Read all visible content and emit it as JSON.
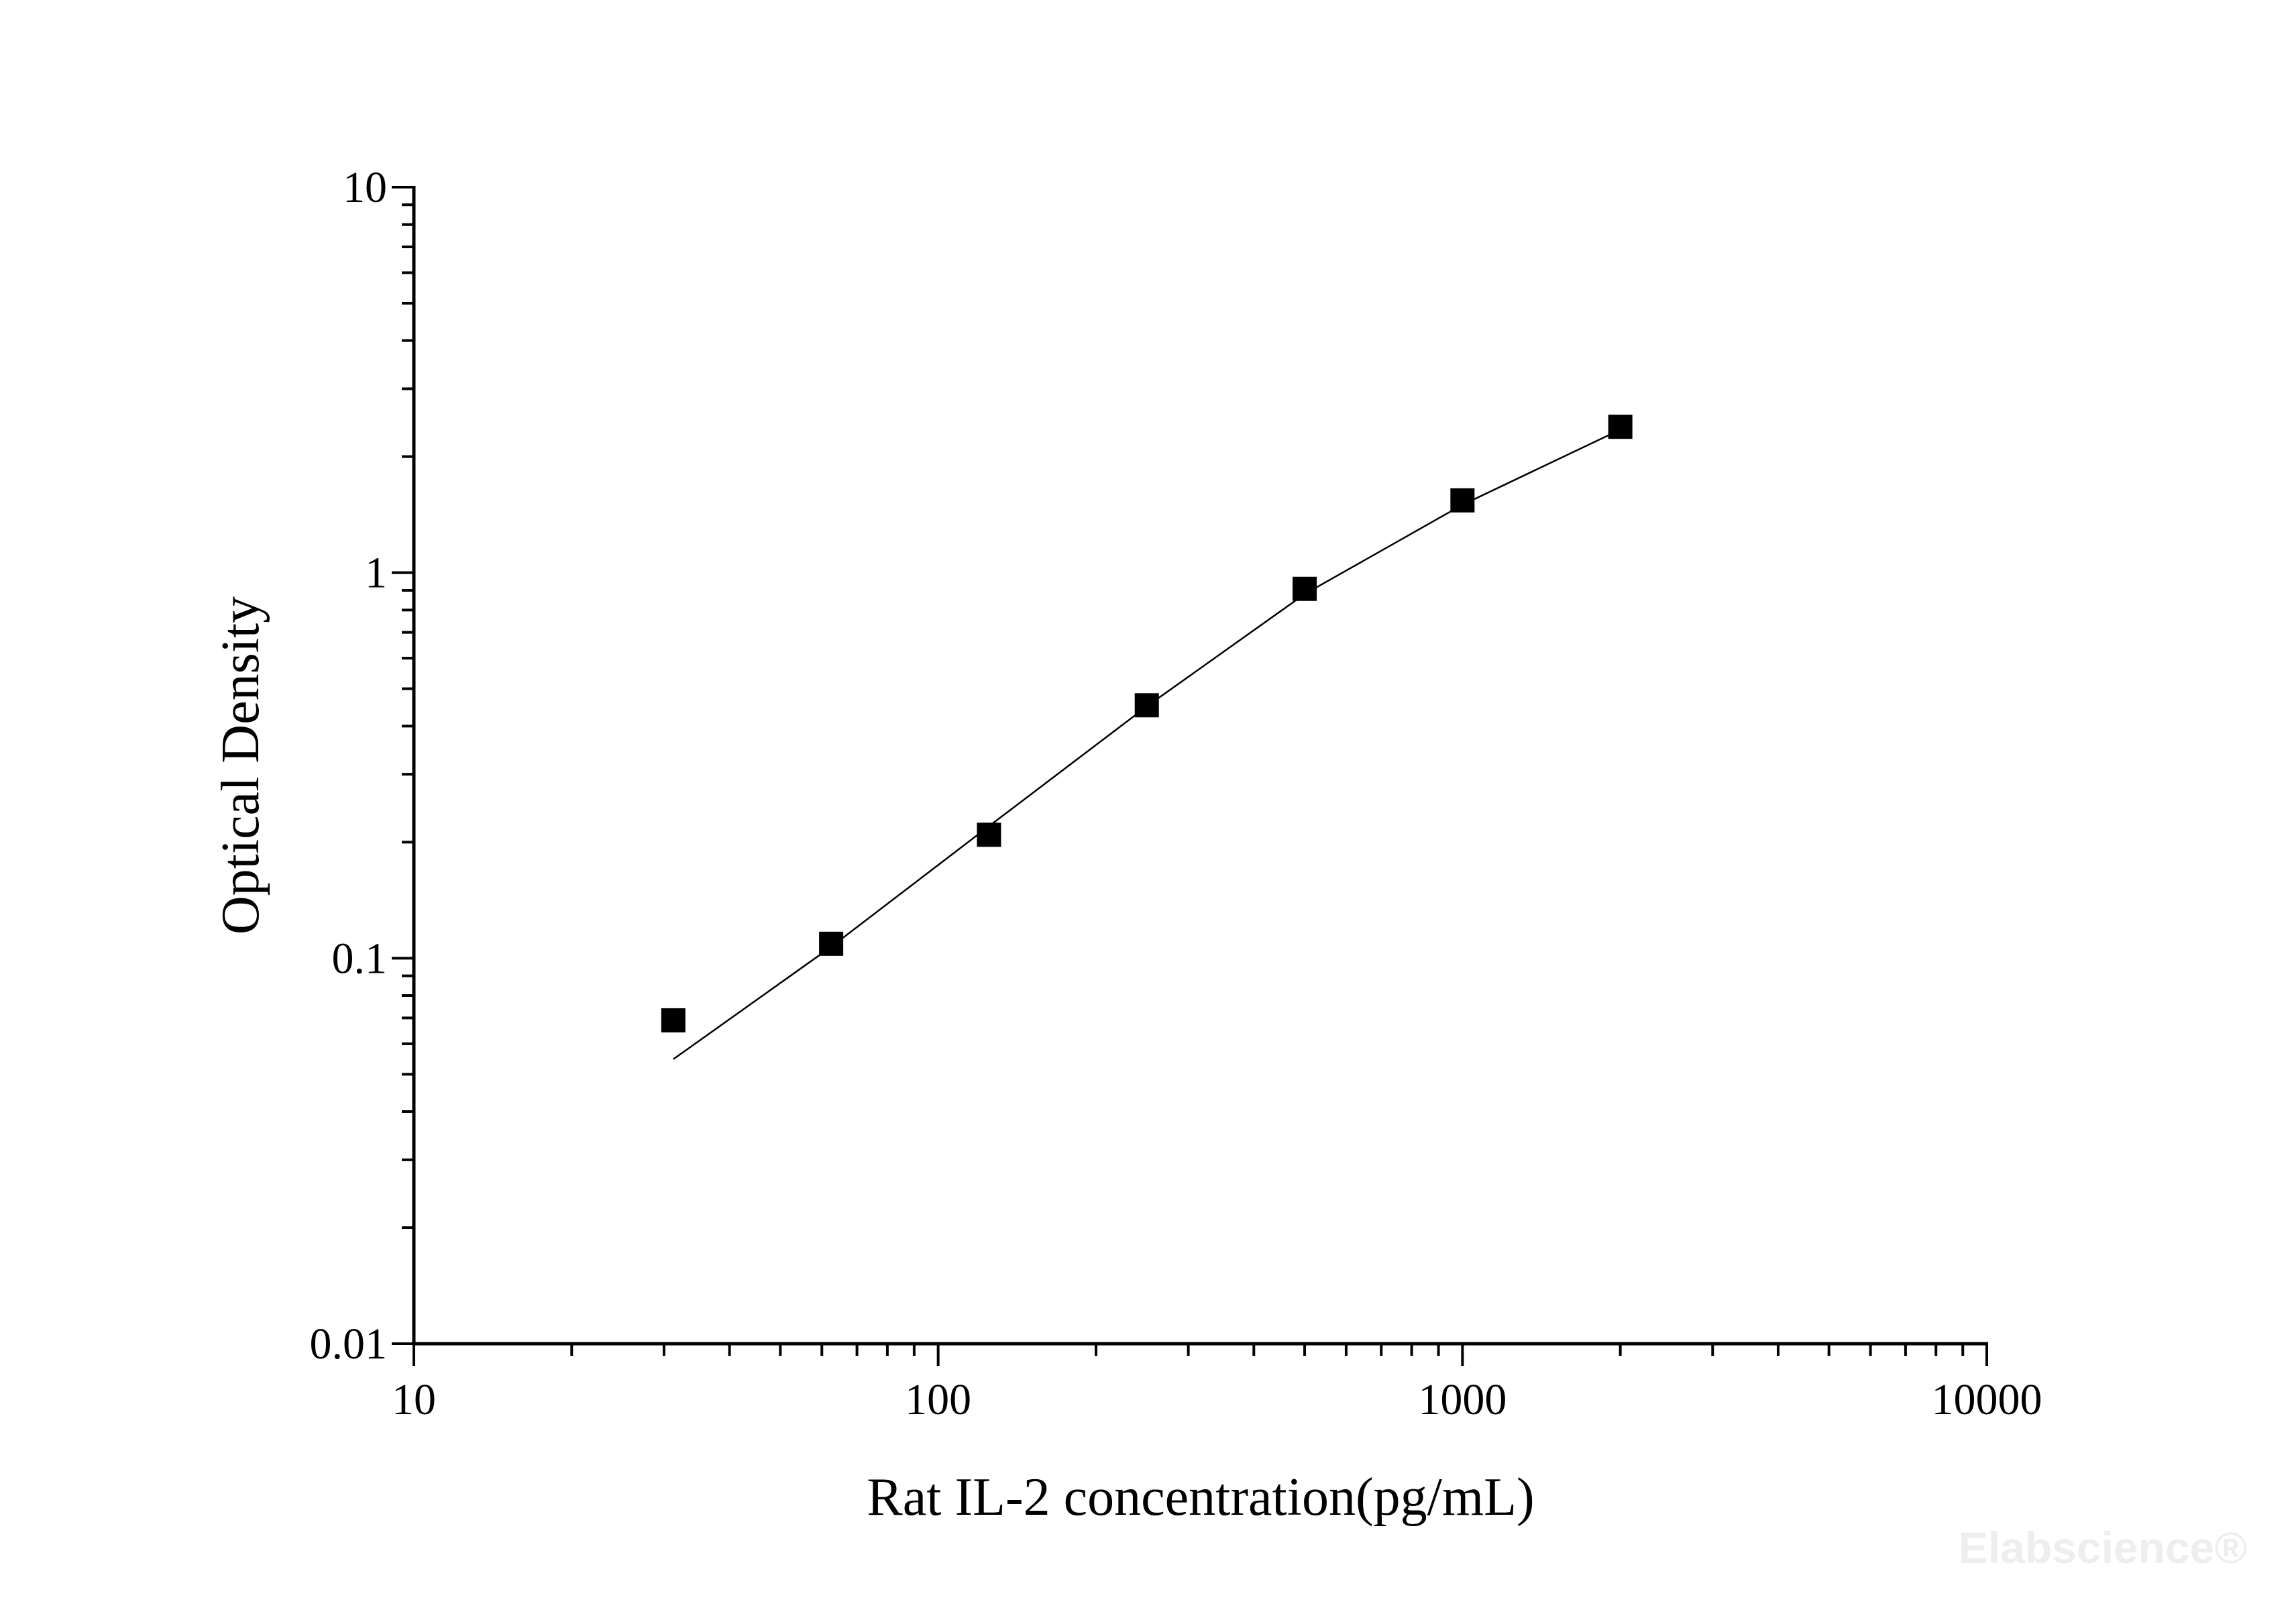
{
  "chart_data": {
    "type": "scatter",
    "title": "",
    "xlabel": "Rat IL-2 concentration(pg/mL)",
    "ylabel": "Optical Density",
    "x_scale": "log",
    "y_scale": "log",
    "xlim": [
      10,
      10000
    ],
    "ylim": [
      0.01,
      10
    ],
    "x_ticks": [
      "10",
      "100",
      "1000",
      "10000"
    ],
    "y_ticks": [
      "0.01",
      "0.1",
      "1",
      "10"
    ],
    "grid": false,
    "legend": "none",
    "series": [
      {
        "marker": "square",
        "x": [
          31.25,
          62.5,
          125,
          250,
          500,
          1000,
          2000
        ],
        "y": [
          0.069,
          0.109,
          0.209,
          0.453,
          0.908,
          1.54,
          2.39
        ]
      },
      {
        "style": "line",
        "x": [
          31.25,
          62.5,
          125,
          250,
          500,
          1000,
          2000
        ],
        "y": [
          0.0547,
          0.107,
          0.22,
          0.45,
          0.88,
          1.5,
          2.35
        ]
      }
    ],
    "colors": {
      "marker": "#000000",
      "line": "#000000",
      "axis": "#000000"
    }
  },
  "watermark": "Elabscience®"
}
